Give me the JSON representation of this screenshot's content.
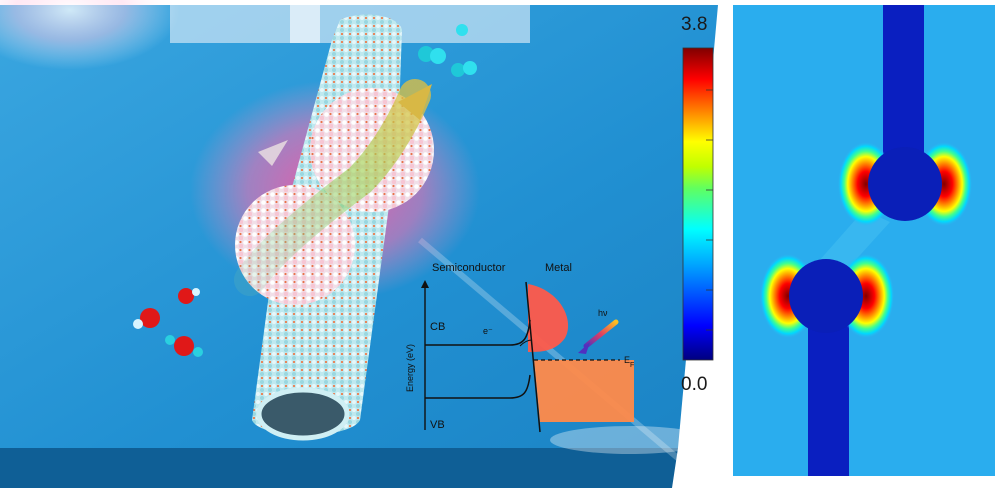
{
  "colorbar": {
    "max_label": "3.8",
    "min_label": "0.0",
    "stops": [
      "#00007f",
      "#0000ff",
      "#00a0ff",
      "#00ffff",
      "#40ff80",
      "#c0ff00",
      "#ffff00",
      "#ff8000",
      "#ff0000",
      "#800000"
    ]
  },
  "band_diagram": {
    "semiconductor_label": "Semiconductor",
    "metal_label": "Metal",
    "axis_label": "Energy (eV)",
    "cb_label": "CB",
    "vb_label": "VB",
    "electron_label": "e⁻",
    "photon_label": "hν",
    "fermi_label": "E",
    "fermi_sub": "F"
  },
  "colors": {
    "substrate_top": "#1e8fd0",
    "substrate_side": "#0f5f96",
    "field_background": "#2fb4f0",
    "particle_core": "#0a1fb8",
    "metal_region": "#ff8a4a",
    "metal_curve": "#ff5a4a"
  }
}
